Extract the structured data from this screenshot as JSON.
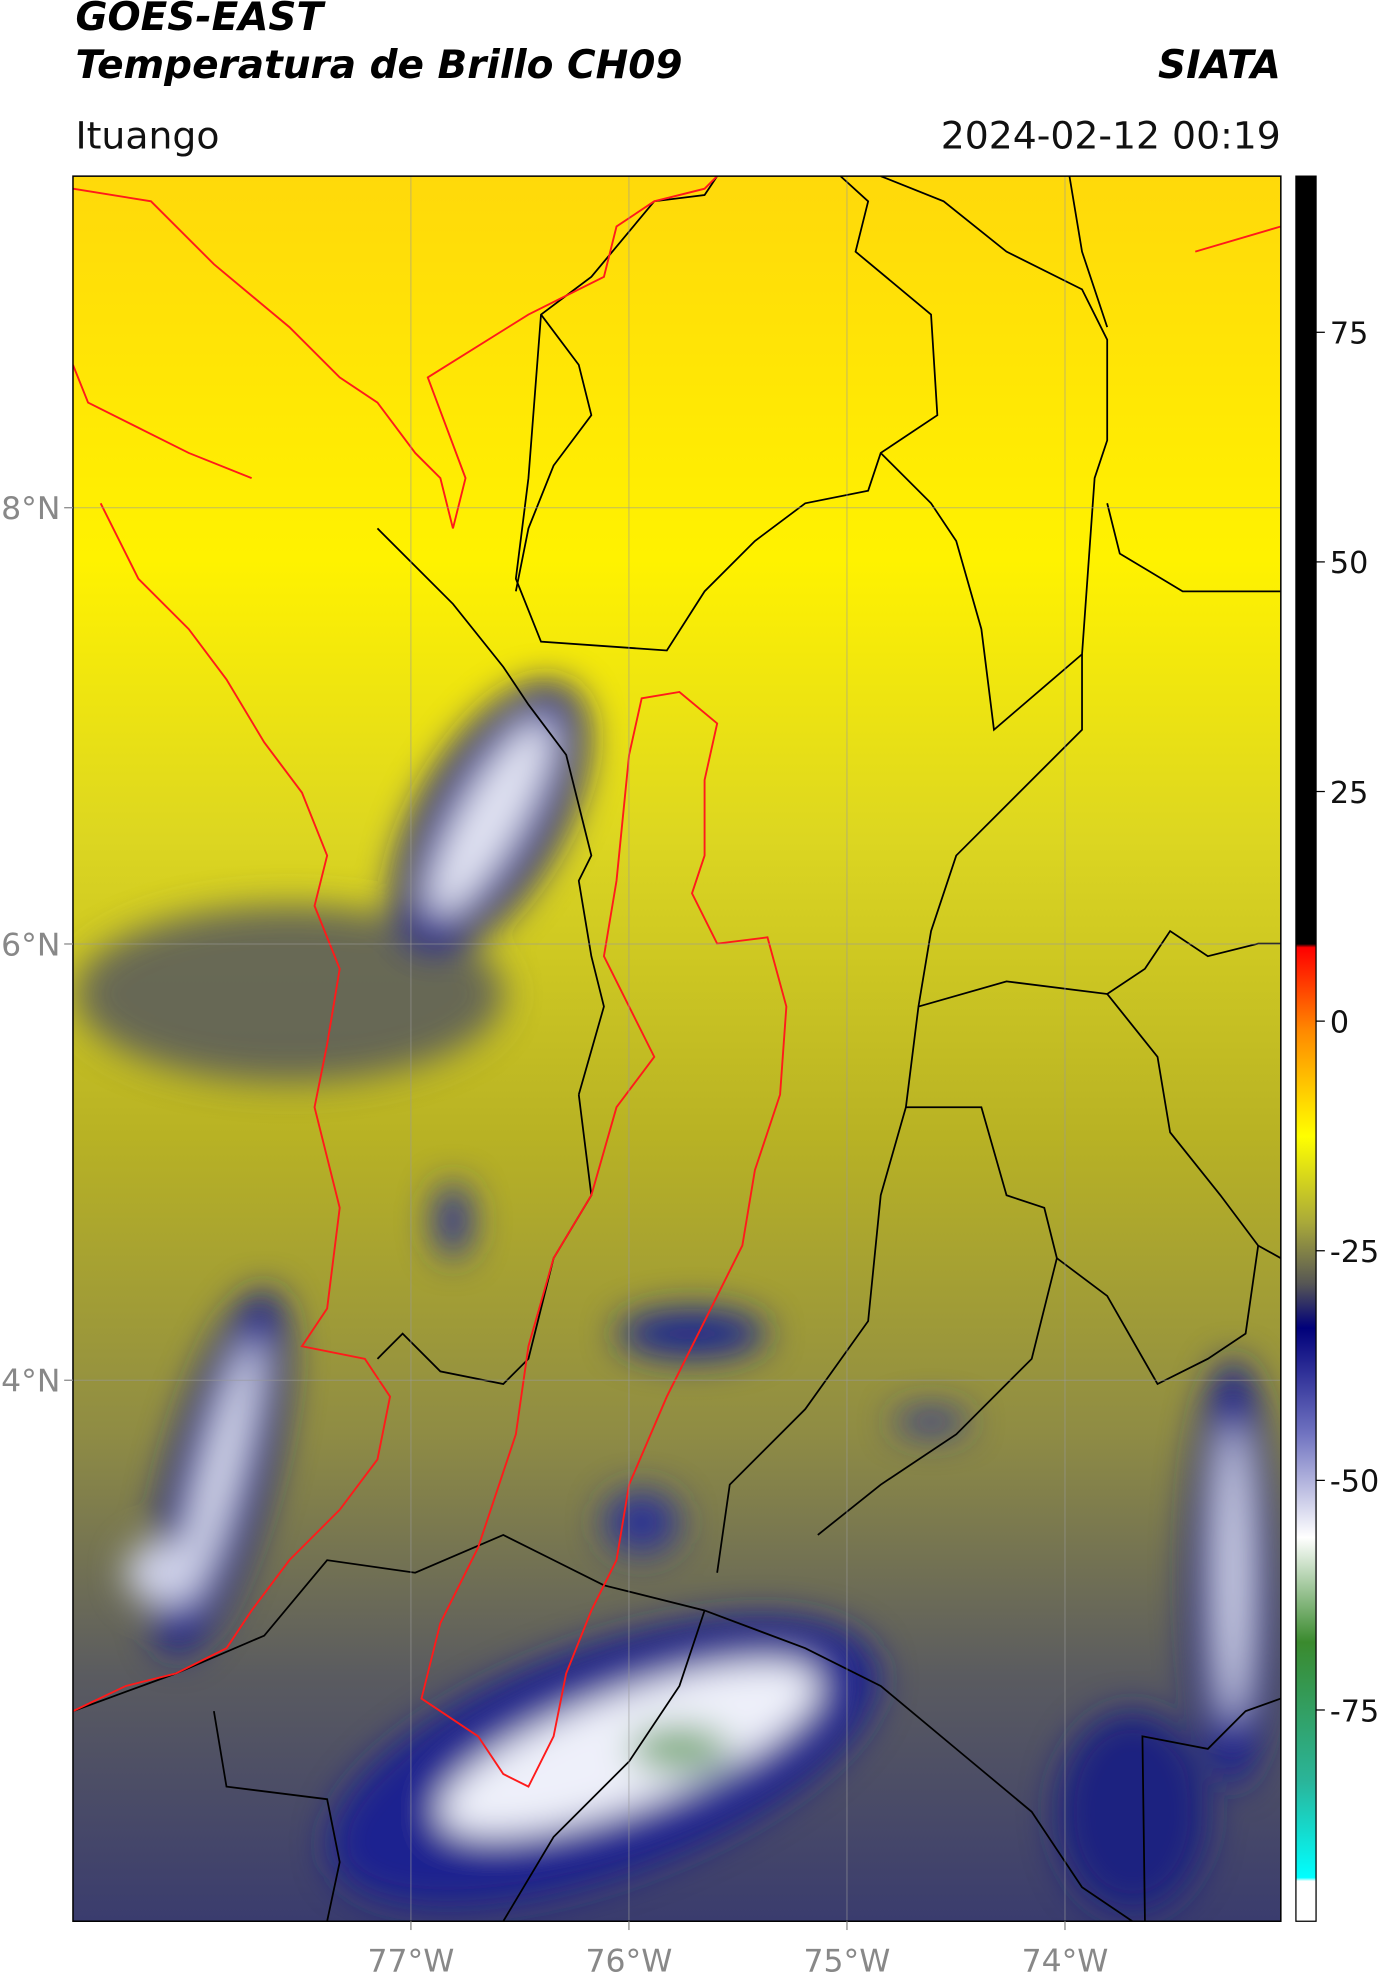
{
  "header": {
    "title": "GOES-EAST",
    "subtitle": "Temperatura de Brillo CH09",
    "source": "SIATA",
    "location": "Ituango",
    "timestamp": "2024-02-12 00:19"
  },
  "map": {
    "xlim": [
      -78.55,
      -73.01
    ],
    "ylim": [
      1.52,
      9.52
    ],
    "xticks": [
      {
        "value": -77,
        "label": "77°W"
      },
      {
        "value": -76,
        "label": "76°W"
      },
      {
        "value": -75,
        "label": "75°W"
      },
      {
        "value": -74,
        "label": "74°W"
      }
    ],
    "yticks": [
      {
        "value": 4,
        "label": "4°N"
      },
      {
        "value": 6,
        "label": "6°N"
      },
      {
        "value": 8,
        "label": "8°N"
      }
    ],
    "grid": true
  },
  "colorbar": {
    "ylim": [
      -98,
      92
    ],
    "yticks": [
      -75,
      -50,
      -25,
      0,
      25,
      50,
      75
    ]
  }
}
